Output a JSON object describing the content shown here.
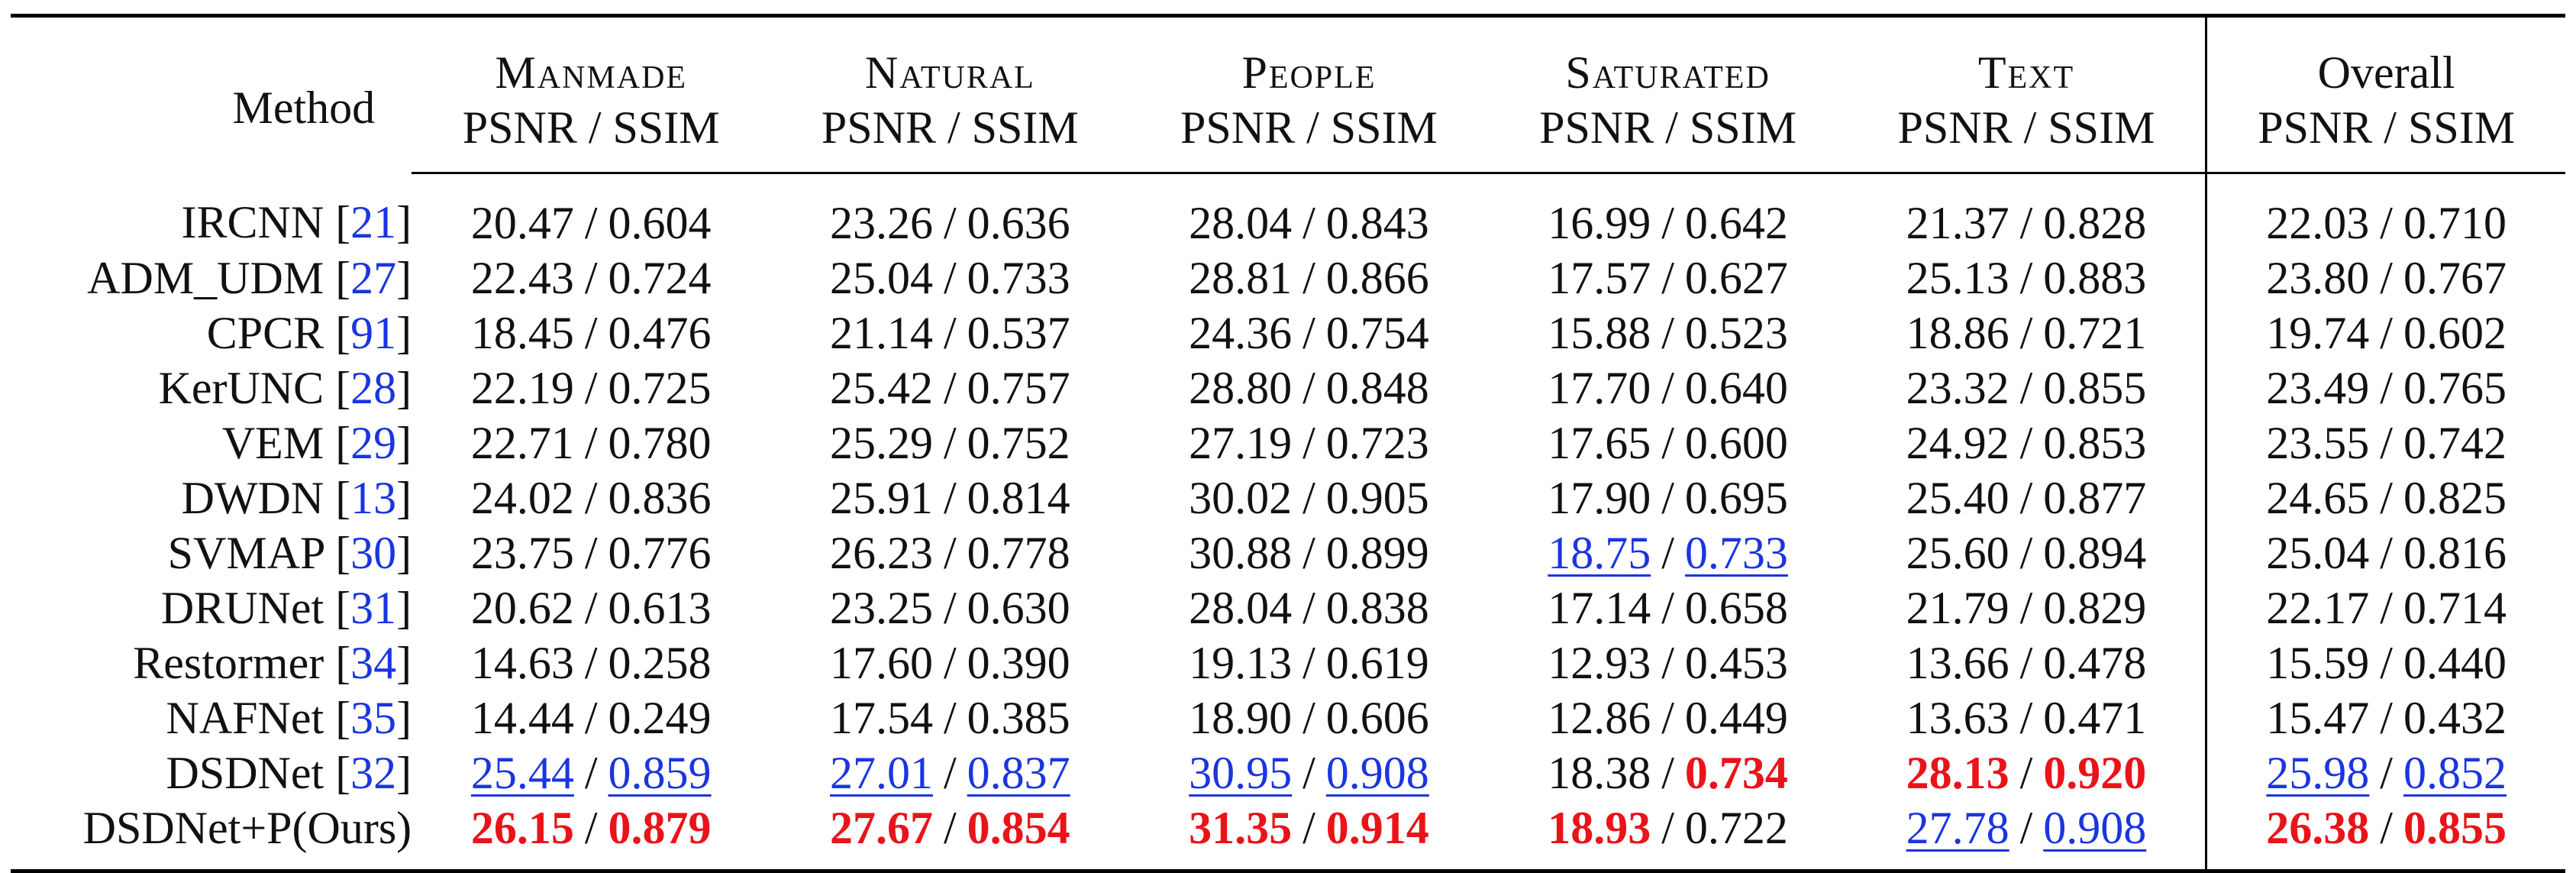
{
  "table": {
    "method_header": "Method",
    "metric_header": "PSNR / SSIM",
    "columns": [
      {
        "name": "Manmade",
        "small_caps": true
      },
      {
        "name": "Natural",
        "small_caps": true
      },
      {
        "name": "People",
        "small_caps": true
      },
      {
        "name": "Saturated",
        "small_caps": true
      },
      {
        "name": "Text",
        "small_caps": true
      },
      {
        "name": "Overall",
        "small_caps": false
      }
    ],
    "separator": "/",
    "rows": [
      {
        "method": "IRCNN",
        "ref": "21",
        "cells": [
          {
            "psnr": "20.47",
            "ssim": "0.604"
          },
          {
            "psnr": "23.26",
            "ssim": "0.636"
          },
          {
            "psnr": "28.04",
            "ssim": "0.843"
          },
          {
            "psnr": "16.99",
            "ssim": "0.642"
          },
          {
            "psnr": "21.37",
            "ssim": "0.828"
          },
          {
            "psnr": "22.03",
            "ssim": "0.710"
          }
        ]
      },
      {
        "method": "ADM_UDM",
        "ref": "27",
        "cells": [
          {
            "psnr": "22.43",
            "ssim": "0.724"
          },
          {
            "psnr": "25.04",
            "ssim": "0.733"
          },
          {
            "psnr": "28.81",
            "ssim": "0.866"
          },
          {
            "psnr": "17.57",
            "ssim": "0.627"
          },
          {
            "psnr": "25.13",
            "ssim": "0.883"
          },
          {
            "psnr": "23.80",
            "ssim": "0.767"
          }
        ]
      },
      {
        "method": "CPCR",
        "ref": "91",
        "cells": [
          {
            "psnr": "18.45",
            "ssim": "0.476"
          },
          {
            "psnr": "21.14",
            "ssim": "0.537"
          },
          {
            "psnr": "24.36",
            "ssim": "0.754"
          },
          {
            "psnr": "15.88",
            "ssim": "0.523"
          },
          {
            "psnr": "18.86",
            "ssim": "0.721"
          },
          {
            "psnr": "19.74",
            "ssim": "0.602"
          }
        ]
      },
      {
        "method": "KerUNC",
        "ref": "28",
        "cells": [
          {
            "psnr": "22.19",
            "ssim": "0.725"
          },
          {
            "psnr": "25.42",
            "ssim": "0.757"
          },
          {
            "psnr": "28.80",
            "ssim": "0.848"
          },
          {
            "psnr": "17.70",
            "ssim": "0.640"
          },
          {
            "psnr": "23.32",
            "ssim": "0.855"
          },
          {
            "psnr": "23.49",
            "ssim": "0.765"
          }
        ]
      },
      {
        "method": "VEM",
        "ref": "29",
        "cells": [
          {
            "psnr": "22.71",
            "ssim": "0.780"
          },
          {
            "psnr": "25.29",
            "ssim": "0.752"
          },
          {
            "psnr": "27.19",
            "ssim": "0.723"
          },
          {
            "psnr": "17.65",
            "ssim": "0.600"
          },
          {
            "psnr": "24.92",
            "ssim": "0.853"
          },
          {
            "psnr": "23.55",
            "ssim": "0.742"
          }
        ]
      },
      {
        "method": "DWDN",
        "ref": "13",
        "cells": [
          {
            "psnr": "24.02",
            "ssim": "0.836"
          },
          {
            "psnr": "25.91",
            "ssim": "0.814"
          },
          {
            "psnr": "30.02",
            "ssim": "0.905"
          },
          {
            "psnr": "17.90",
            "ssim": "0.695"
          },
          {
            "psnr": "25.40",
            "ssim": "0.877"
          },
          {
            "psnr": "24.65",
            "ssim": "0.825"
          }
        ]
      },
      {
        "method": "SVMAP",
        "ref": "30",
        "cells": [
          {
            "psnr": "23.75",
            "ssim": "0.776"
          },
          {
            "psnr": "26.23",
            "ssim": "0.778"
          },
          {
            "psnr": "30.88",
            "ssim": "0.899"
          },
          {
            "psnr": "18.75",
            "ssim": "0.733",
            "psnr_rank": "second",
            "ssim_rank": "second"
          },
          {
            "psnr": "25.60",
            "ssim": "0.894"
          },
          {
            "psnr": "25.04",
            "ssim": "0.816"
          }
        ]
      },
      {
        "method": "DRUNet",
        "ref": "31",
        "cells": [
          {
            "psnr": "20.62",
            "ssim": "0.613"
          },
          {
            "psnr": "23.25",
            "ssim": "0.630"
          },
          {
            "psnr": "28.04",
            "ssim": "0.838"
          },
          {
            "psnr": "17.14",
            "ssim": "0.658"
          },
          {
            "psnr": "21.79",
            "ssim": "0.829"
          },
          {
            "psnr": "22.17",
            "ssim": "0.714"
          }
        ]
      },
      {
        "method": "Restormer",
        "ref": "34",
        "cells": [
          {
            "psnr": "14.63",
            "ssim": "0.258"
          },
          {
            "psnr": "17.60",
            "ssim": "0.390"
          },
          {
            "psnr": "19.13",
            "ssim": "0.619"
          },
          {
            "psnr": "12.93",
            "ssim": "0.453"
          },
          {
            "psnr": "13.66",
            "ssim": "0.478"
          },
          {
            "psnr": "15.59",
            "ssim": "0.440"
          }
        ]
      },
      {
        "method": "NAFNet",
        "ref": "35",
        "cells": [
          {
            "psnr": "14.44",
            "ssim": "0.249"
          },
          {
            "psnr": "17.54",
            "ssim": "0.385"
          },
          {
            "psnr": "18.90",
            "ssim": "0.606"
          },
          {
            "psnr": "12.86",
            "ssim": "0.449"
          },
          {
            "psnr": "13.63",
            "ssim": "0.471"
          },
          {
            "psnr": "15.47",
            "ssim": "0.432"
          }
        ]
      },
      {
        "method": "DSDNet",
        "ref": "32",
        "cells": [
          {
            "psnr": "25.44",
            "ssim": "0.859",
            "psnr_rank": "second",
            "ssim_rank": "second"
          },
          {
            "psnr": "27.01",
            "ssim": "0.837",
            "psnr_rank": "second",
            "ssim_rank": "second"
          },
          {
            "psnr": "30.95",
            "ssim": "0.908",
            "psnr_rank": "second",
            "ssim_rank": "second"
          },
          {
            "psnr": "18.38",
            "ssim": "0.734",
            "ssim_rank": "best"
          },
          {
            "psnr": "28.13",
            "ssim": "0.920",
            "psnr_rank": "best",
            "ssim_rank": "best"
          },
          {
            "psnr": "25.98",
            "ssim": "0.852",
            "psnr_rank": "second",
            "ssim_rank": "second"
          }
        ]
      },
      {
        "method": "DSDNet+P(Ours)",
        "ref": "",
        "cells": [
          {
            "psnr": "26.15",
            "ssim": "0.879",
            "psnr_rank": "best",
            "ssim_rank": "best"
          },
          {
            "psnr": "27.67",
            "ssim": "0.854",
            "psnr_rank": "best",
            "ssim_rank": "best"
          },
          {
            "psnr": "31.35",
            "ssim": "0.914",
            "psnr_rank": "best",
            "ssim_rank": "best"
          },
          {
            "psnr": "18.93",
            "ssim": "0.722",
            "psnr_rank": "best"
          },
          {
            "psnr": "27.78",
            "ssim": "0.908",
            "psnr_rank": "second",
            "ssim_rank": "second"
          },
          {
            "psnr": "26.38",
            "ssim": "0.855",
            "psnr_rank": "best",
            "ssim_rank": "best"
          }
        ]
      }
    ]
  },
  "colors": {
    "best": "#e8141a",
    "second": "#1a35e0",
    "ref": "#1a35e0"
  }
}
